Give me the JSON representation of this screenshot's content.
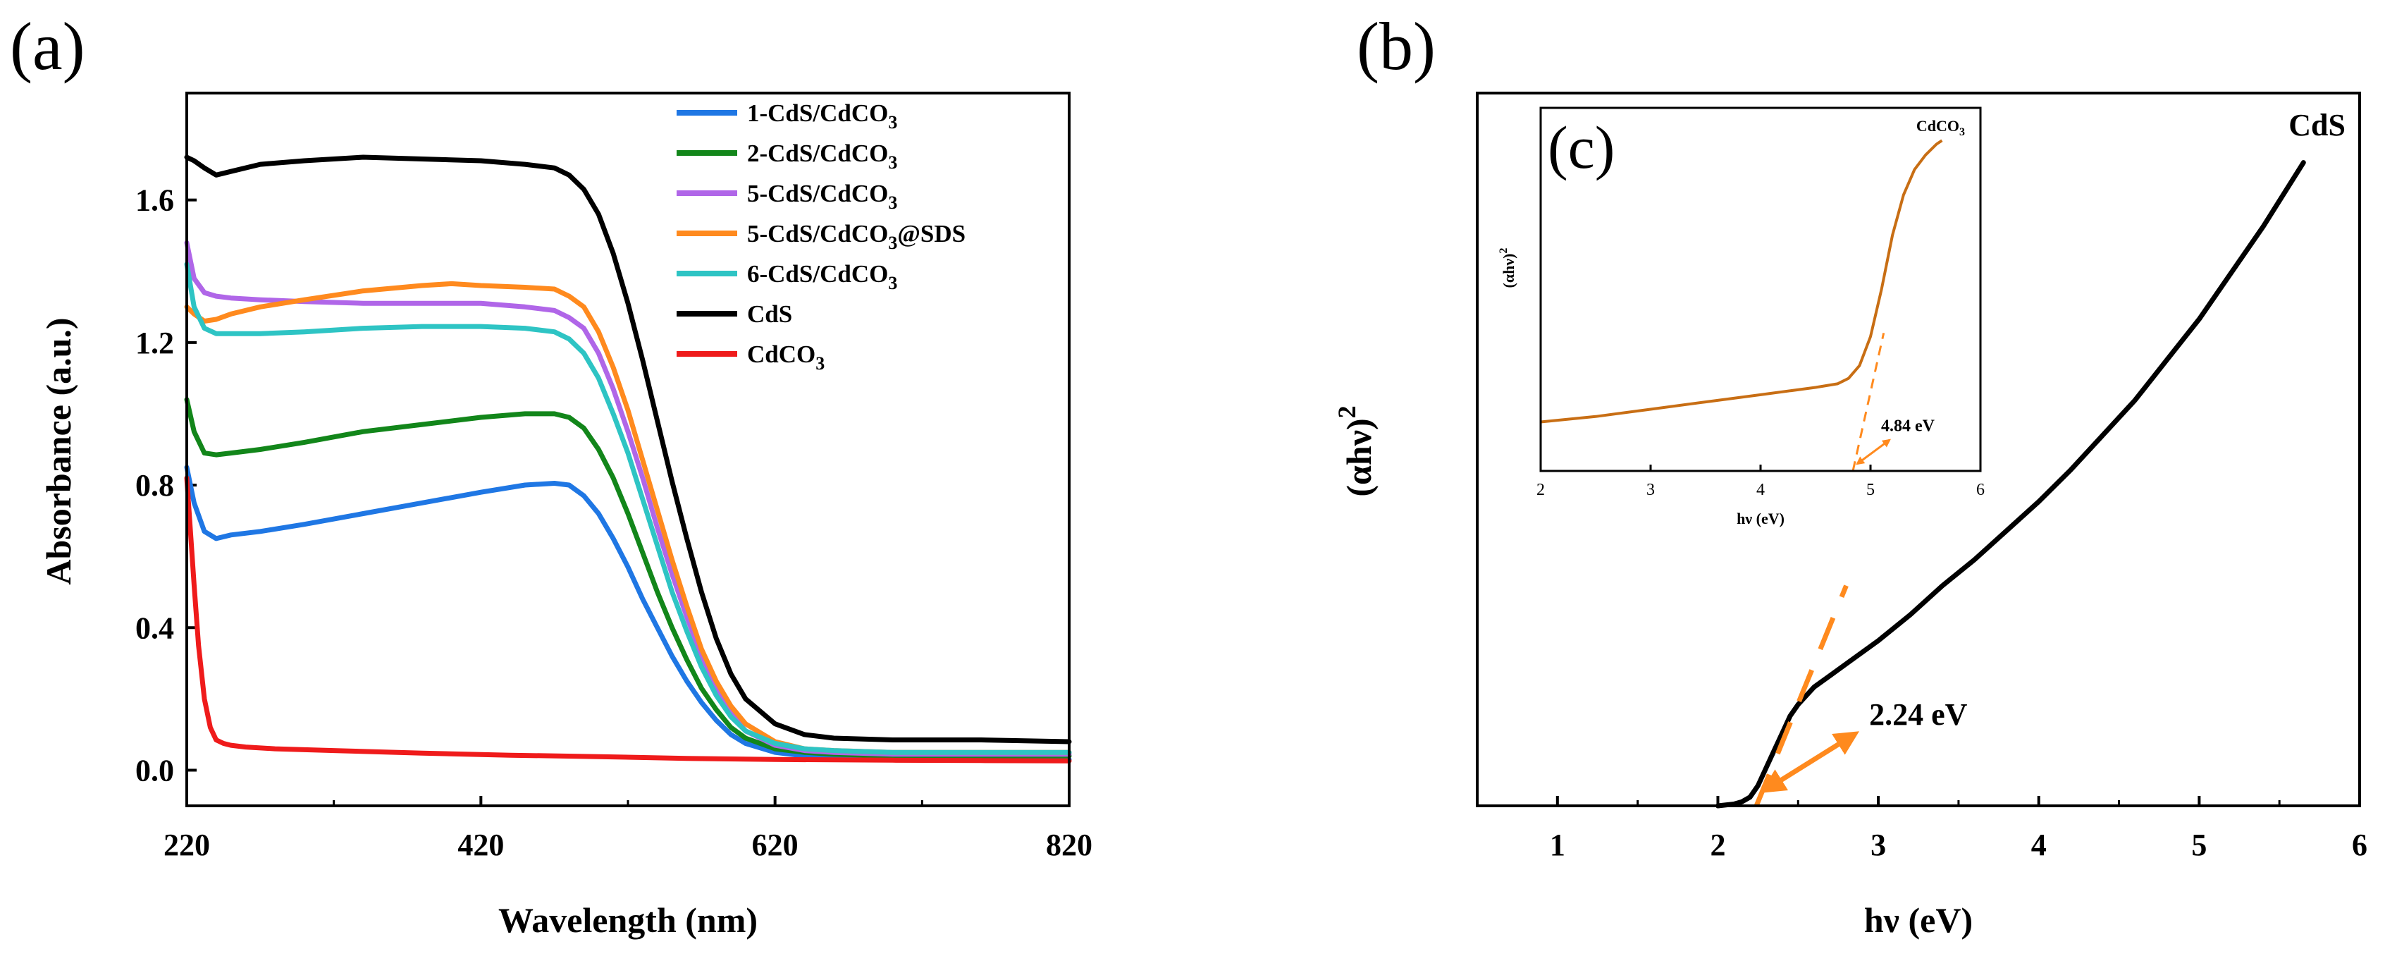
{
  "chart_data": [
    {
      "panel": "(a)",
      "type": "line",
      "xlabel": "Wavelength (nm)",
      "ylabel": "Absorbance (a.u.)",
      "xlim": [
        220,
        820
      ],
      "ylim": [
        -0.1,
        1.9
      ],
      "xticks": [
        220,
        420,
        620,
        820
      ],
      "yticks": [
        0.0,
        0.4,
        0.8,
        1.2,
        1.6
      ],
      "ytick_labels": [
        "0.0",
        "0.4",
        "0.8",
        "1.2",
        "1.6"
      ],
      "legend_position": "top-right",
      "series": [
        {
          "name": "1-CdS/CdCO3",
          "label_main": "1-CdS/CdCO",
          "label_sub": "3",
          "label_tail": "",
          "color": "#1f77e4",
          "x": [
            220,
            225,
            232,
            240,
            250,
            270,
            300,
            340,
            380,
            420,
            450,
            470,
            480,
            490,
            500,
            510,
            520,
            530,
            540,
            550,
            560,
            570,
            580,
            590,
            600,
            620,
            640,
            660,
            700,
            760,
            820
          ],
          "y": [
            0.85,
            0.75,
            0.67,
            0.65,
            0.66,
            0.67,
            0.69,
            0.72,
            0.75,
            0.78,
            0.8,
            0.805,
            0.8,
            0.77,
            0.72,
            0.65,
            0.57,
            0.48,
            0.4,
            0.32,
            0.25,
            0.19,
            0.14,
            0.1,
            0.075,
            0.05,
            0.04,
            0.035,
            0.03,
            0.03,
            0.03
          ]
        },
        {
          "name": "2-CdS/CdCO3",
          "label_main": "2-CdS/CdCO",
          "label_sub": "3",
          "label_tail": "",
          "color": "#12861a",
          "x": [
            220,
            225,
            232,
            240,
            250,
            270,
            300,
            340,
            380,
            420,
            450,
            470,
            480,
            490,
            500,
            510,
            520,
            530,
            540,
            550,
            560,
            570,
            580,
            590,
            600,
            620,
            640,
            660,
            700,
            760,
            820
          ],
          "y": [
            1.04,
            0.95,
            0.89,
            0.885,
            0.89,
            0.9,
            0.92,
            0.95,
            0.97,
            0.99,
            1.0,
            1.0,
            0.99,
            0.96,
            0.9,
            0.82,
            0.72,
            0.61,
            0.5,
            0.4,
            0.31,
            0.23,
            0.17,
            0.12,
            0.09,
            0.06,
            0.05,
            0.045,
            0.04,
            0.04,
            0.04
          ]
        },
        {
          "name": "5-CdS/CdCO3",
          "label_main": "5-CdS/CdCO",
          "label_sub": "3",
          "label_tail": "",
          "color": "#b066e8",
          "x": [
            220,
            225,
            232,
            240,
            250,
            270,
            300,
            340,
            380,
            420,
            450,
            470,
            480,
            490,
            500,
            510,
            520,
            530,
            540,
            550,
            560,
            570,
            580,
            590,
            600,
            620,
            640,
            660,
            700,
            760,
            820
          ],
          "y": [
            1.48,
            1.38,
            1.34,
            1.33,
            1.325,
            1.32,
            1.315,
            1.31,
            1.31,
            1.31,
            1.3,
            1.29,
            1.27,
            1.24,
            1.17,
            1.07,
            0.95,
            0.82,
            0.68,
            0.55,
            0.43,
            0.32,
            0.23,
            0.16,
            0.11,
            0.07,
            0.055,
            0.05,
            0.045,
            0.045,
            0.045
          ]
        },
        {
          "name": "5-CdS/CdCO3@SDS",
          "label_main": "5-CdS/CdCO",
          "label_sub": "3",
          "label_tail": "@SDS",
          "color": "#ff8a1e",
          "x": [
            220,
            225,
            232,
            240,
            250,
            270,
            300,
            340,
            380,
            400,
            420,
            450,
            470,
            480,
            490,
            500,
            510,
            520,
            530,
            540,
            550,
            560,
            570,
            580,
            590,
            600,
            620,
            640,
            660,
            700,
            760,
            820
          ],
          "y": [
            1.3,
            1.28,
            1.26,
            1.265,
            1.28,
            1.3,
            1.32,
            1.345,
            1.36,
            1.365,
            1.36,
            1.355,
            1.35,
            1.33,
            1.3,
            1.23,
            1.13,
            1.01,
            0.87,
            0.73,
            0.59,
            0.46,
            0.34,
            0.25,
            0.18,
            0.13,
            0.08,
            0.06,
            0.055,
            0.05,
            0.05,
            0.05
          ]
        },
        {
          "name": "6-CdS/CdCO3",
          "label_main": "6-CdS/CdCO",
          "label_sub": "3",
          "label_tail": "",
          "color": "#2ec4c4",
          "x": [
            220,
            225,
            232,
            240,
            250,
            270,
            300,
            340,
            380,
            420,
            450,
            470,
            480,
            490,
            500,
            510,
            520,
            530,
            540,
            550,
            560,
            570,
            580,
            590,
            600,
            620,
            640,
            660,
            700,
            760,
            820
          ],
          "y": [
            1.42,
            1.3,
            1.24,
            1.225,
            1.225,
            1.225,
            1.23,
            1.24,
            1.245,
            1.245,
            1.24,
            1.23,
            1.21,
            1.17,
            1.1,
            1.0,
            0.89,
            0.76,
            0.63,
            0.5,
            0.39,
            0.29,
            0.21,
            0.15,
            0.11,
            0.075,
            0.06,
            0.055,
            0.05,
            0.05,
            0.05
          ]
        },
        {
          "name": "CdS",
          "label_main": "CdS",
          "label_sub": "",
          "label_tail": "",
          "color": "#000000",
          "x": [
            220,
            225,
            232,
            240,
            250,
            270,
            300,
            340,
            380,
            420,
            450,
            470,
            480,
            490,
            500,
            510,
            520,
            530,
            540,
            550,
            560,
            570,
            580,
            590,
            600,
            620,
            640,
            660,
            700,
            760,
            820
          ],
          "y": [
            1.72,
            1.71,
            1.69,
            1.67,
            1.68,
            1.7,
            1.71,
            1.72,
            1.715,
            1.71,
            1.7,
            1.69,
            1.67,
            1.63,
            1.56,
            1.45,
            1.31,
            1.15,
            0.98,
            0.81,
            0.65,
            0.5,
            0.37,
            0.27,
            0.2,
            0.13,
            0.1,
            0.09,
            0.085,
            0.085,
            0.08
          ]
        },
        {
          "name": "CdCO3",
          "label_main": "CdCO",
          "label_sub": "3",
          "label_tail": "",
          "color": "#ef1b1b",
          "x": [
            220,
            222,
            225,
            228,
            232,
            236,
            240,
            245,
            250,
            260,
            280,
            320,
            380,
            440,
            500,
            560,
            620,
            700,
            760,
            820
          ],
          "y": [
            0.82,
            0.7,
            0.52,
            0.35,
            0.2,
            0.12,
            0.085,
            0.075,
            0.07,
            0.065,
            0.06,
            0.055,
            0.048,
            0.042,
            0.038,
            0.033,
            0.03,
            0.028,
            0.027,
            0.026
          ]
        }
      ]
    },
    {
      "panel": "(b)",
      "type": "line",
      "xlabel": "hν (eV)",
      "ylabel_main": "(αhν)",
      "ylabel_sup": "2",
      "xlim": [
        0.5,
        6.0
      ],
      "ylim": [
        0,
        100
      ],
      "xticks": [
        1,
        2,
        3,
        4,
        5,
        6
      ],
      "xtick_labels": [
        "1",
        "2",
        "3",
        "4",
        "5",
        "6"
      ],
      "sample_label": "CdS",
      "series": [
        {
          "name": "CdS",
          "color": "#000000",
          "x": [
            2.0,
            2.1,
            2.15,
            2.2,
            2.25,
            2.3,
            2.35,
            2.4,
            2.45,
            2.5,
            2.6,
            2.7,
            2.8,
            3.0,
            3.2,
            3.4,
            3.6,
            3.8,
            4.0,
            4.2,
            4.4,
            4.6,
            4.8,
            5.0,
            5.2,
            5.4,
            5.65
          ],
          "y": [
            0,
            0.3,
            0.7,
            1.5,
            3.5,
            6.5,
            9.5,
            12.5,
            15.5,
            17.5,
            20.5,
            22.5,
            24.5,
            28.5,
            33,
            38,
            42.5,
            47.5,
            52.5,
            58,
            64,
            70,
            77,
            84,
            92,
            100,
            111
          ]
        }
      ],
      "tangent": {
        "color": "#ff8a1e",
        "x": [
          2.24,
          2.8
        ],
        "y": [
          0,
          38
        ]
      },
      "bandgap_ev": 2.24,
      "bandgap_label": "2.24 eV"
    },
    {
      "panel": "(c)",
      "type": "line",
      "inset_of": "(b)",
      "xlabel": "hν (eV)",
      "ylabel_main": "(αhν)",
      "ylabel_sup": "2",
      "title_main": "CdCO",
      "title_sub": "3",
      "xlim": [
        2,
        6
      ],
      "ylim": [
        0,
        100
      ],
      "xticks": [
        2,
        3,
        4,
        5,
        6
      ],
      "xtick_labels": [
        "2",
        "3",
        "4",
        "5",
        "6"
      ],
      "series": [
        {
          "name": "CdCO3",
          "color": "#c86e14",
          "x": [
            2.0,
            2.5,
            3.0,
            3.5,
            4.0,
            4.5,
            4.7,
            4.8,
            4.9,
            5.0,
            5.1,
            5.2,
            5.3,
            5.4,
            5.5,
            5.6,
            5.65
          ],
          "y": [
            13.5,
            15,
            17,
            19,
            21,
            23,
            24,
            25.5,
            29,
            37,
            50,
            65,
            76,
            83,
            87,
            90,
            91
          ]
        }
      ],
      "tangent": {
        "color": "#ff8a1e",
        "x": [
          4.84,
          5.12
        ],
        "y": [
          0,
          38
        ]
      },
      "bandgap_ev": 4.84,
      "bandgap_label": "4.84 eV"
    }
  ]
}
